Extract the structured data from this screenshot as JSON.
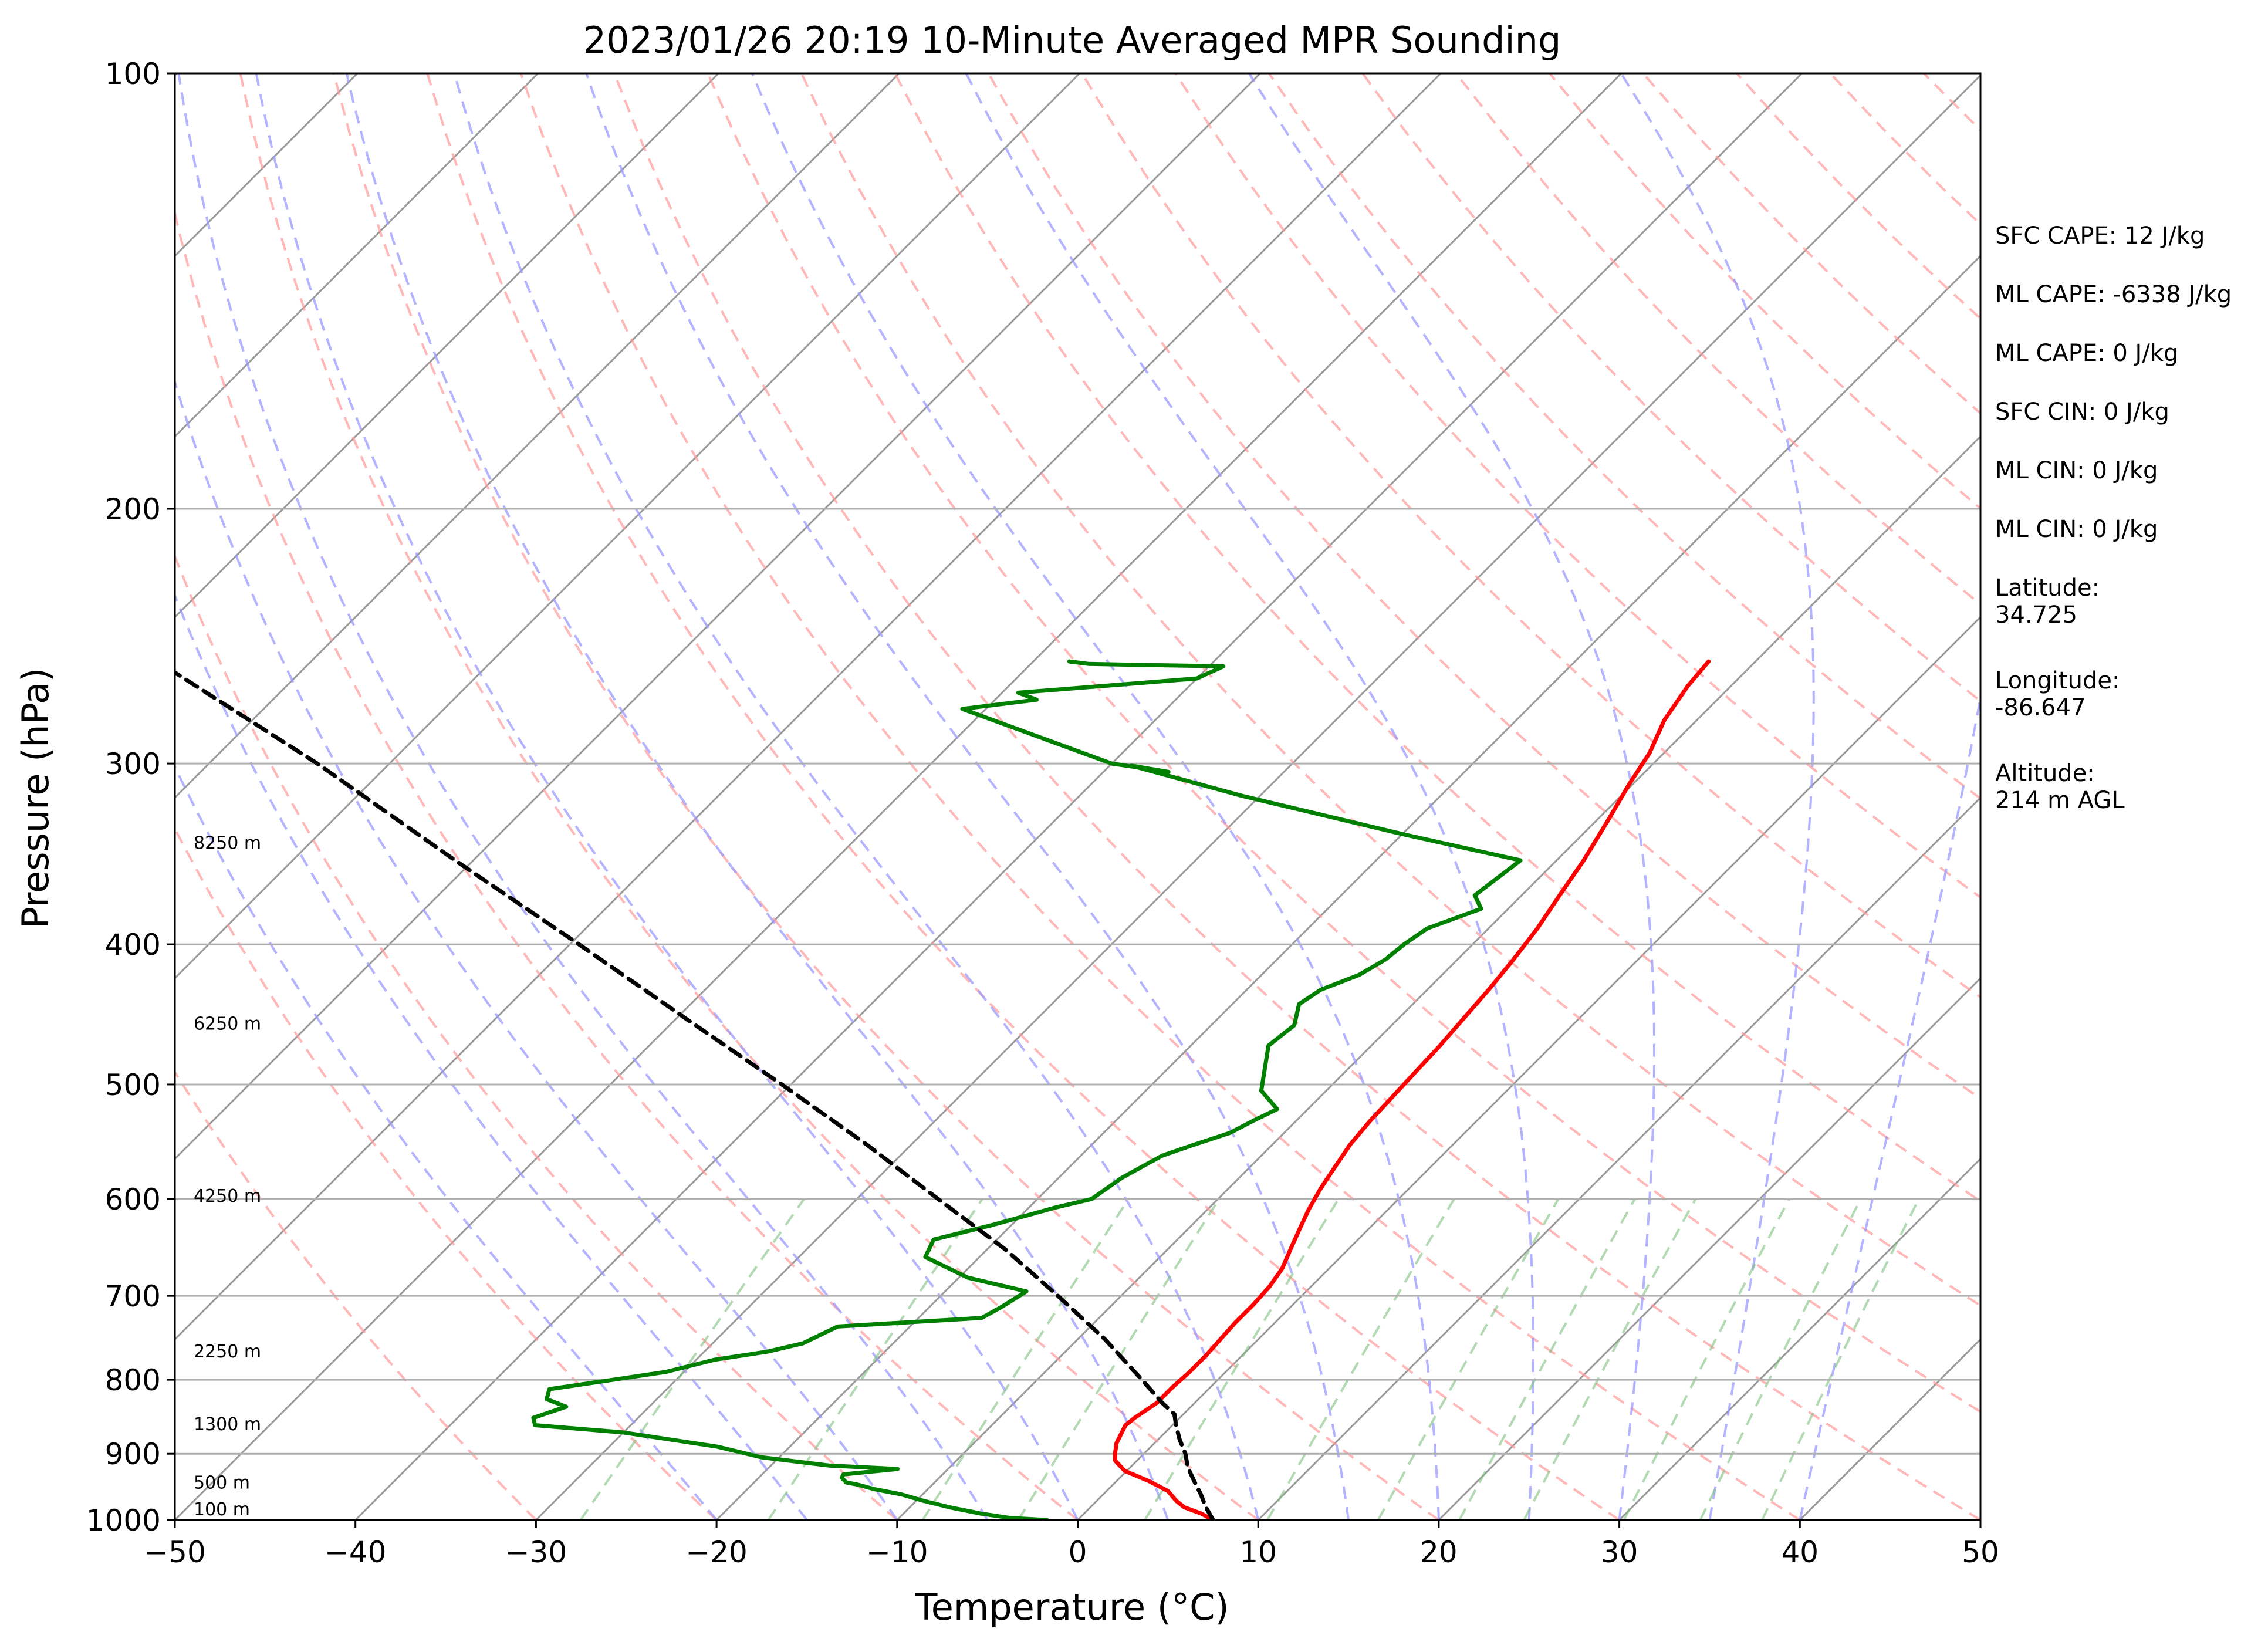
{
  "chart_data": {
    "type": "line",
    "title": "2023/01/26 20:19 10-Minute Averaged MPR Sounding",
    "xlabel": "Temperature (°C)",
    "ylabel": "Pressure (hPa)",
    "xlim": [
      -50,
      50
    ],
    "ylim": [
      1000,
      100
    ],
    "y_scale": "log",
    "x_ticks": [
      "−50",
      "−40",
      "−30",
      "−20",
      "−10",
      "0",
      "10",
      "20",
      "30",
      "40",
      "50"
    ],
    "y_ticks": [
      {
        "value": 100,
        "label": "100"
      },
      {
        "value": 200,
        "label": "200"
      },
      {
        "value": 300,
        "label": "300"
      },
      {
        "value": 400,
        "label": "400"
      },
      {
        "value": 500,
        "label": "500"
      },
      {
        "value": 600,
        "label": "600"
      },
      {
        "value": 700,
        "label": "700"
      },
      {
        "value": 800,
        "label": "800"
      },
      {
        "value": 900,
        "label": "900"
      },
      {
        "value": 1000,
        "label": "1000"
      }
    ],
    "grid": "horizontal",
    "series": [
      {
        "role": "temperature",
        "color": "#ff0000",
        "points": [
          [
            1000,
            7.5
          ],
          [
            990,
            6.5
          ],
          [
            980,
            5.2
          ],
          [
            970,
            4.4
          ],
          [
            955,
            3.4
          ],
          [
            940,
            1.8
          ],
          [
            925,
            -0.1
          ],
          [
            910,
            -1.2
          ],
          [
            900,
            -1.6
          ],
          [
            885,
            -2.1
          ],
          [
            870,
            -2.4
          ],
          [
            860,
            -2.6
          ],
          [
            850,
            -2.5
          ],
          [
            830,
            -2.1
          ],
          [
            810,
            -2.1
          ],
          [
            790,
            -2.0
          ],
          [
            770,
            -2.0
          ],
          [
            750,
            -2.1
          ],
          [
            730,
            -2.2
          ],
          [
            710,
            -2.2
          ],
          [
            690,
            -2.3
          ],
          [
            670,
            -2.6
          ],
          [
            650,
            -3.2
          ],
          [
            630,
            -3.8
          ],
          [
            610,
            -4.4
          ],
          [
            590,
            -4.9
          ],
          [
            570,
            -5.3
          ],
          [
            550,
            -5.7
          ],
          [
            530,
            -5.9
          ],
          [
            510,
            -6.0
          ],
          [
            490,
            -6.1
          ],
          [
            470,
            -6.2
          ],
          [
            450,
            -6.4
          ],
          [
            430,
            -6.6
          ],
          [
            410,
            -6.9
          ],
          [
            390,
            -7.3
          ],
          [
            370,
            -7.9
          ],
          [
            350,
            -8.5
          ],
          [
            330,
            -9.3
          ],
          [
            310,
            -10.2
          ],
          [
            295,
            -10.8
          ],
          [
            280,
            -11.8
          ],
          [
            265,
            -12.4
          ],
          [
            255,
            -12.6
          ]
        ]
      },
      {
        "role": "dewpoint",
        "color": "#008000",
        "points": [
          [
            1000,
            -1.7
          ],
          [
            997,
            -3.8
          ],
          [
            990,
            -5.7
          ],
          [
            980,
            -7.8
          ],
          [
            970,
            -9.6
          ],
          [
            960,
            -11.2
          ],
          [
            952,
            -13.0
          ],
          [
            945,
            -14.2
          ],
          [
            942,
            -14.9
          ],
          [
            935,
            -15.4
          ],
          [
            930,
            -15.5
          ],
          [
            922,
            -12.8
          ],
          [
            917,
            -16.8
          ],
          [
            905,
            -21.0
          ],
          [
            890,
            -24.0
          ],
          [
            870,
            -30.0
          ],
          [
            860,
            -35.3
          ],
          [
            850,
            -35.8
          ],
          [
            835,
            -34.6
          ],
          [
            825,
            -36.1
          ],
          [
            812,
            -36.5
          ],
          [
            802,
            -34.0
          ],
          [
            790,
            -31.0
          ],
          [
            775,
            -29.0
          ],
          [
            765,
            -26.5
          ],
          [
            755,
            -25.0
          ],
          [
            735,
            -24.0
          ],
          [
            725,
            -16.5
          ],
          [
            712,
            -16.0
          ],
          [
            695,
            -15.5
          ],
          [
            680,
            -19.5
          ],
          [
            658,
            -23.0
          ],
          [
            640,
            -23.5
          ],
          [
            625,
            -21.0
          ],
          [
            608,
            -18.5
          ],
          [
            600,
            -17.0
          ],
          [
            580,
            -16.5
          ],
          [
            560,
            -15.5
          ],
          [
            550,
            -14.3
          ],
          [
            540,
            -13.0
          ],
          [
            530,
            -12.4
          ],
          [
            520,
            -11.7
          ],
          [
            505,
            -13.6
          ],
          [
            470,
            -15.7
          ],
          [
            455,
            -15.4
          ],
          [
            440,
            -16.3
          ],
          [
            430,
            -15.9
          ],
          [
            420,
            -14.6
          ],
          [
            410,
            -14.0
          ],
          [
            400,
            -13.8
          ],
          [
            390,
            -13.4
          ],
          [
            378,
            -11.5
          ],
          [
            370,
            -12.6
          ],
          [
            350,
            -12.0
          ],
          [
            336,
            -19.8
          ],
          [
            316,
            -30.9
          ],
          [
            301,
            -38.8
          ],
          [
            304,
            -36.4
          ],
          [
            300,
            -40.0
          ],
          [
            275,
            -51.3
          ],
          [
            271,
            -47.7
          ],
          [
            268,
            -49.1
          ],
          [
            262,
            -40.0
          ],
          [
            257,
            -39.2
          ],
          [
            256,
            -46.8
          ],
          [
            255,
            -48.0
          ]
        ]
      },
      {
        "role": "parcel",
        "color": "#000000",
        "points": [
          [
            1000,
            7.5
          ],
          [
            980,
            6.4
          ],
          [
            960,
            5.4
          ],
          [
            940,
            4.3
          ],
          [
            920,
            3.2
          ],
          [
            900,
            2.3
          ],
          [
            880,
            1.2
          ],
          [
            860,
            0.2
          ],
          [
            845,
            -0.5
          ],
          [
            830,
            -1.8
          ],
          [
            800,
            -4.2
          ],
          [
            750,
            -8.5
          ],
          [
            700,
            -13.5
          ],
          [
            650,
            -19.0
          ],
          [
            600,
            -25.5
          ],
          [
            550,
            -32.5
          ],
          [
            500,
            -40.5
          ],
          [
            450,
            -49.5
          ],
          [
            400,
            -59.5
          ],
          [
            350,
            -71.0
          ],
          [
            300,
            -84.0
          ],
          [
            255,
            -98.5
          ]
        ]
      }
    ],
    "altitude_labels": [
      {
        "pressure": 1000,
        "label": "100 m"
      },
      {
        "pressure": 955,
        "label": "500 m"
      },
      {
        "pressure": 870,
        "label": "1300 m"
      },
      {
        "pressure": 775,
        "label": "2250 m"
      },
      {
        "pressure": 605,
        "label": "4250 m"
      },
      {
        "pressure": 460,
        "label": "6250 m"
      },
      {
        "pressure": 345,
        "label": "8250 m"
      }
    ],
    "annotations": [
      "SFC CAPE: 12 J/kg",
      "ML CAPE: -6338 J/kg",
      "ML CAPE: 0 J/kg",
      "SFC CIN: 0 J/kg",
      "ML CIN: 0 J/kg",
      "ML CIN: 0 J/kg",
      "Latitude:\n34.725",
      "Longitude:\n-86.647",
      "Altitude:\n214 m AGL"
    ],
    "background_lines": {
      "isotherms_color": "#999999",
      "dry_adiabats_color": "#ff9999",
      "moist_adiabats_color": "#9999ff",
      "mixing_ratio_color": "#80c080"
    }
  }
}
